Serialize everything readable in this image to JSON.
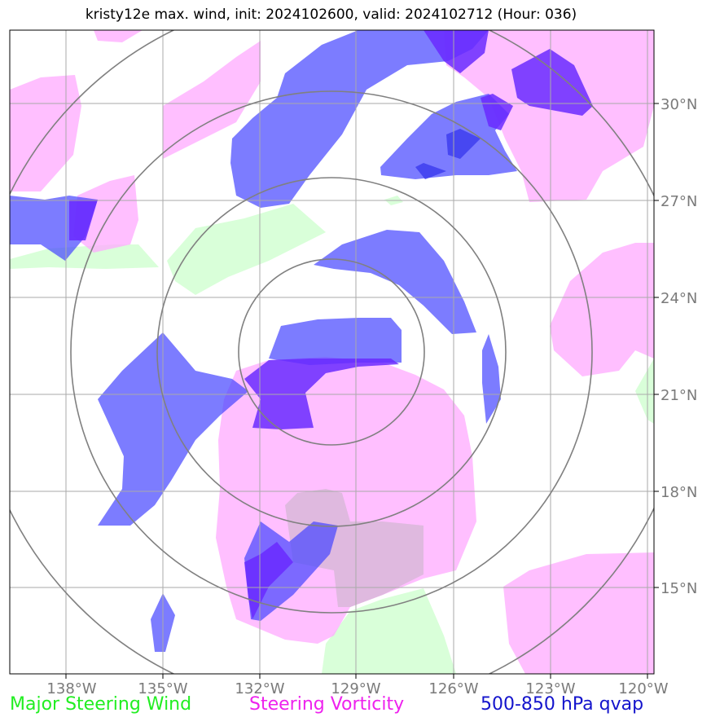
{
  "title": "kristy12e max. wind, init: 2024102600, valid: 2024102712 (Hour: 036)",
  "colors": {
    "steering_wind": "#ccffcc",
    "steering_vorticity": "#ffaaff",
    "qvap": "#4444ff",
    "overlap": "#6a2aff",
    "grid": "#aaaaaa",
    "rings": "#808080"
  },
  "axes": {
    "lon_labels": [
      "138°W",
      "135°W",
      "132°W",
      "129°W",
      "126°W",
      "123°W",
      "120°W"
    ],
    "lat_labels": [
      "30°N",
      "27°N",
      "24°N",
      "21°N",
      "18°N",
      "15°N"
    ]
  },
  "legend": {
    "wind": "Major Steering Wind",
    "vorticity": "Steering Vorticity",
    "qvap": "500-850 hPa qvap"
  }
}
